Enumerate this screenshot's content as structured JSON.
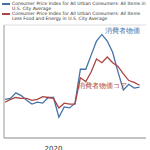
{
  "chart_data": {
    "type": "line",
    "x": [
      2017.75,
      2018,
      2018.25,
      2018.5,
      2018.75,
      2019,
      2019.25,
      2019.5,
      2019.75,
      2020,
      2020.25,
      2020.5,
      2020.75,
      2021,
      2021.25,
      2021.5,
      2021.75,
      2022,
      2022.25,
      2022.5,
      2022.75,
      2023,
      2023.25,
      2023.5,
      2023.75,
      2024
    ],
    "series": [
      {
        "name": "Consumer Price Index for All Urban Consumers: All Items in U.S. City Average",
        "color": "#4572a7",
        "values": [
          2.1,
          2.2,
          2.8,
          2.5,
          2.0,
          1.6,
          1.8,
          1.7,
          2.3,
          2.3,
          0.2,
          1.3,
          1.2,
          1.7,
          5.3,
          5.3,
          6.8,
          8.3,
          9.0,
          8.3,
          7.1,
          5.0,
          3.1,
          3.7,
          3.3,
          3.4
        ]
      },
      {
        "name": "Consumer Price Index for All Urban Consumers: All Items Less Food and Energy in U.S. City Average",
        "color": "#aa4643",
        "values": [
          1.8,
          2.1,
          2.3,
          2.2,
          2.2,
          2.0,
          2.1,
          2.4,
          2.3,
          2.2,
          1.2,
          1.7,
          1.6,
          1.6,
          4.4,
          4.0,
          5.0,
          6.4,
          6.0,
          6.6,
          6.0,
          5.6,
          4.8,
          4.1,
          3.9,
          3.6
        ]
      }
    ],
    "annotations": [
      {
        "text": "消費者物価",
        "x": 2023.2,
        "y": 9.4,
        "color": "#4572a7"
      },
      {
        "text": "消費者物価コア",
        "x": 2022.3,
        "y": 3.6,
        "color": "#aa4643"
      }
    ],
    "xlim": [
      2017.7,
      2024.3
    ],
    "xticks": [
      2020
    ],
    "ylim": [
      -2,
      10
    ],
    "yticks": [
      -2,
      0,
      2,
      4,
      6,
      8,
      10
    ],
    "grid": true,
    "legend": "top",
    "tick_labels": "x"
  }
}
